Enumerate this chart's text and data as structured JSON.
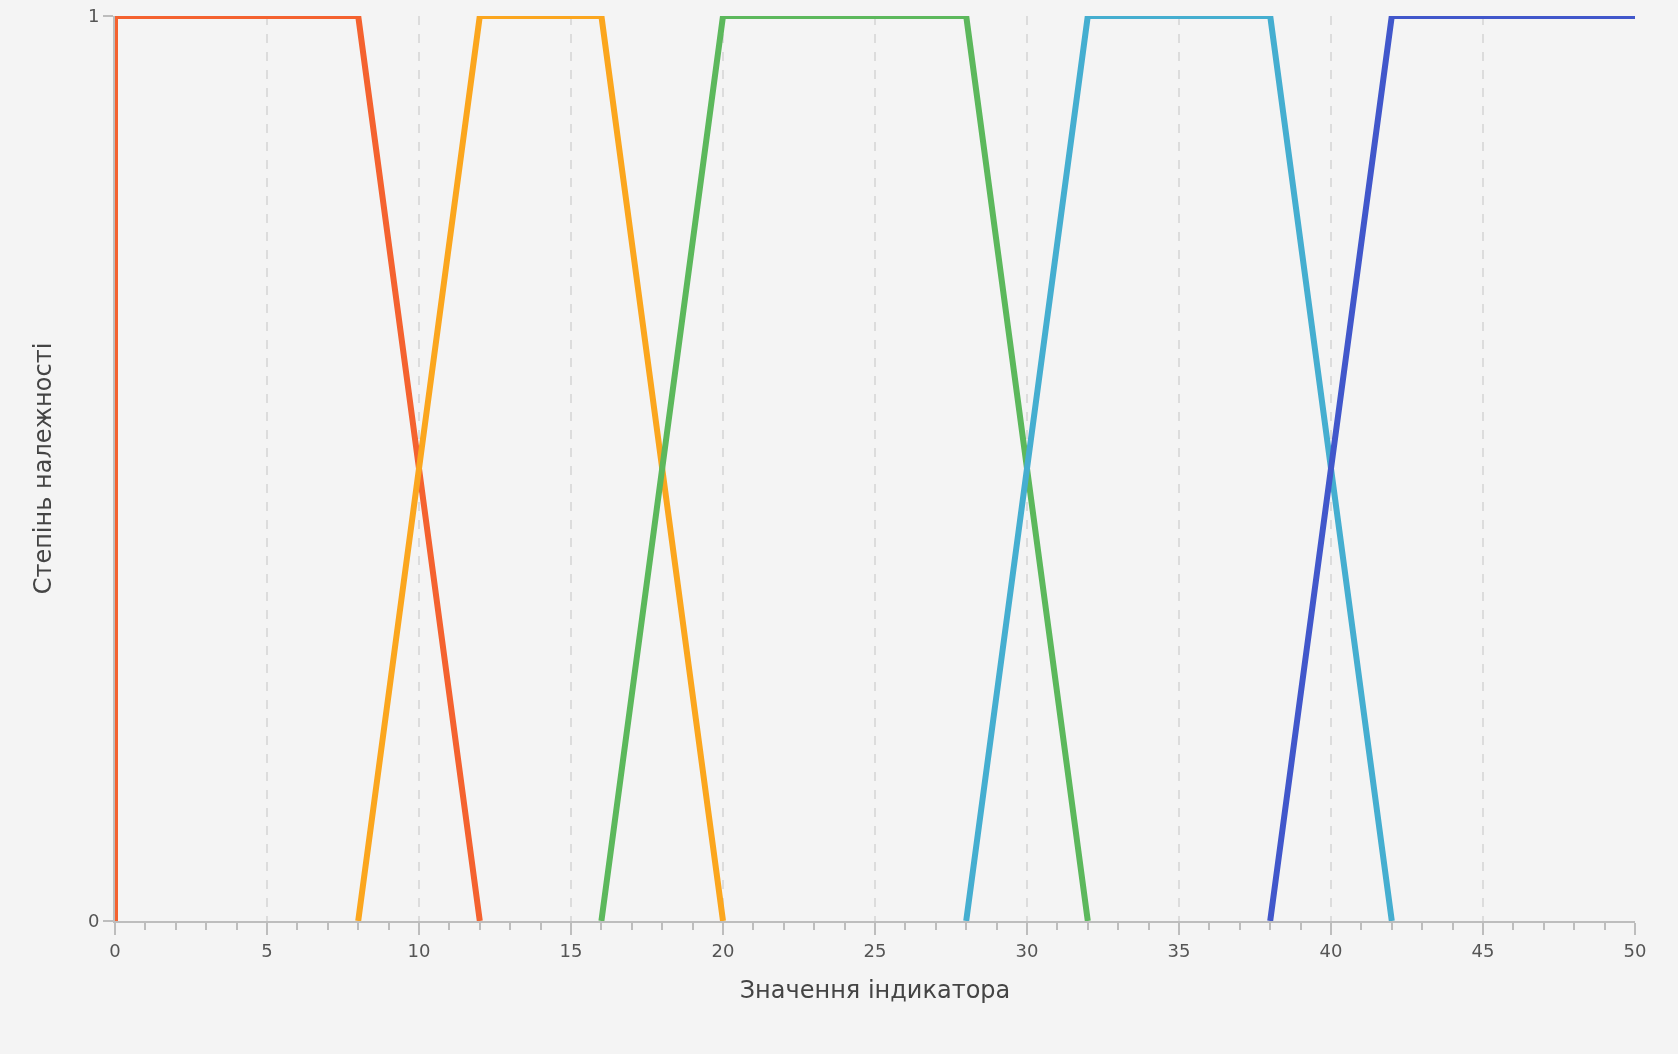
{
  "chart_data": {
    "type": "line",
    "xlabel": "Значення індикатора",
    "ylabel": "Степінь належності",
    "xlim": [
      0,
      50
    ],
    "xticks": [
      0,
      {
        "value": 1,
        "label": null
      },
      {
        "value": 2,
        "label": null
      },
      {
        "value": 3,
        "label": null
      },
      {
        "value": 4,
        "label": null
      },
      5,
      {
        "value": 6,
        "label": null
      },
      {
        "value": 7,
        "label": null
      },
      {
        "value": 8,
        "label": null
      },
      {
        "value": 9,
        "label": null
      },
      10,
      {
        "value": 11,
        "label": null
      },
      {
        "value": 12,
        "label": null
      },
      {
        "value": 13,
        "label": null
      },
      {
        "value": 14,
        "label": null
      },
      15,
      {
        "value": 16,
        "label": null
      },
      {
        "value": 17,
        "label": null
      },
      {
        "value": 18,
        "label": null
      },
      {
        "value": 19,
        "label": null
      },
      20,
      {
        "value": 21,
        "label": null
      },
      {
        "value": 22,
        "label": null
      },
      {
        "value": 23,
        "label": null
      },
      {
        "value": 24,
        "label": null
      },
      25,
      {
        "value": 26,
        "label": null
      },
      {
        "value": 27,
        "label": null
      },
      {
        "value": 28,
        "label": null
      },
      {
        "value": 29,
        "label": null
      },
      30,
      {
        "value": 31,
        "label": null
      },
      {
        "value": 32,
        "label": null
      },
      {
        "value": 33,
        "label": null
      },
      {
        "value": 34,
        "label": null
      },
      35,
      {
        "value": 36,
        "label": null
      },
      {
        "value": 37,
        "label": null
      },
      {
        "value": 38,
        "label": null
      },
      {
        "value": 39,
        "label": null
      },
      40,
      {
        "value": 41,
        "label": null
      },
      {
        "value": 42,
        "label": null
      },
      {
        "value": 43,
        "label": null
      },
      {
        "value": 44,
        "label": null
      },
      45,
      {
        "value": 46,
        "label": null
      },
      {
        "value": 47,
        "label": null
      },
      {
        "value": 48,
        "label": null
      },
      {
        "value": 49,
        "label": null
      },
      50
    ],
    "ylim": [
      0,
      1
    ],
    "yticks": [
      0,
      1
    ],
    "grid": true,
    "marker": "none",
    "line_style": "solid",
    "series": [
      {
        "color": "#f4622f",
        "x": [
          0,
          0,
          8,
          12
        ],
        "values": [
          0,
          1,
          1,
          0
        ]
      },
      {
        "color": "#fba61e",
        "x": [
          8,
          12,
          16,
          20
        ],
        "values": [
          0,
          1,
          1,
          0
        ]
      },
      {
        "color": "#5cb85c",
        "x": [
          16,
          20,
          28,
          32
        ],
        "values": [
          0,
          1,
          1,
          0
        ]
      },
      {
        "color": "#45aed0",
        "x": [
          28,
          32,
          38,
          42
        ],
        "values": [
          0,
          1,
          1,
          0
        ]
      },
      {
        "color": "#4157cb",
        "x": [
          38,
          42,
          50
        ],
        "values": [
          0,
          1,
          1
        ]
      }
    ]
  }
}
